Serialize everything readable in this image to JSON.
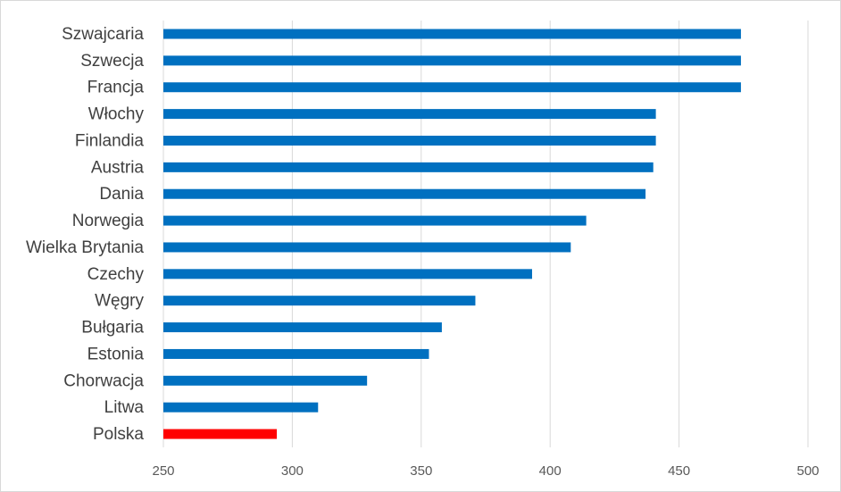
{
  "chart_data": {
    "type": "bar",
    "orientation": "horizontal",
    "title": "",
    "xlabel": "",
    "ylabel": "",
    "categories": [
      "Szwajcaria",
      "Szwecja",
      "Francja",
      "Włochy",
      "Finlandia",
      "Austria",
      "Dania",
      "Norwegia",
      "Wielka Brytania",
      "Czechy",
      "Węgry",
      "Bułgaria",
      "Estonia",
      "Chorwacja",
      "Litwa",
      "Polska"
    ],
    "values": [
      474,
      474,
      474,
      441,
      441,
      440,
      437,
      414,
      408,
      393,
      371,
      358,
      353,
      329,
      310,
      294
    ],
    "highlight_category": "Polska",
    "colors": {
      "default": "#0070C0",
      "highlight": "#FF0000"
    },
    "xlim": [
      250,
      500
    ],
    "xticks": [
      250,
      300,
      350,
      400,
      450,
      500
    ],
    "grid": "vertical",
    "legend": "none"
  }
}
